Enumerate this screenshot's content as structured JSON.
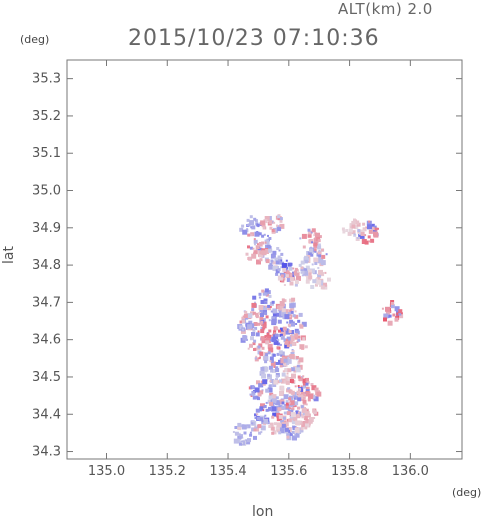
{
  "header": {
    "altitude_label": "ALT(km) 2.0",
    "timestamp": "2015/10/23 07:10:36"
  },
  "chart_data": {
    "type": "heatmap",
    "title": "2015/10/23 07:10:36",
    "xlabel": "lon",
    "ylabel": "lat",
    "x_unit": "(deg)",
    "y_unit": "(deg)",
    "xlim": [
      134.87,
      136.17
    ],
    "ylim": [
      34.28,
      35.35
    ],
    "xticks": [
      135.0,
      135.2,
      135.4,
      135.6,
      135.8,
      136.0
    ],
    "xtick_labels": [
      "135.0",
      "135.2",
      "135.4",
      "135.6",
      "135.8",
      "136.0"
    ],
    "yticks": [
      34.3,
      34.4,
      34.5,
      34.6,
      34.7,
      34.8,
      34.9,
      35.0,
      35.1,
      35.2,
      35.3
    ],
    "ytick_labels": [
      "34.3",
      "34.4",
      "34.5",
      "34.6",
      "34.7",
      "34.8",
      "34.9",
      "35.0",
      "35.1",
      "35.2",
      "35.3"
    ],
    "grid": false,
    "colors": {
      "positive": "#e8505a",
      "negative": "#4a4ae8"
    },
    "clusters": [
      {
        "lon": 135.47,
        "lat": 34.91,
        "v": -0.6
      },
      {
        "lon": 135.54,
        "lat": 34.92,
        "v": 0.5
      },
      {
        "lon": 135.51,
        "lat": 34.86,
        "v": -0.7
      },
      {
        "lon": 135.49,
        "lat": 34.84,
        "v": 0.6
      },
      {
        "lon": 135.55,
        "lat": 34.82,
        "v": -0.5
      },
      {
        "lon": 135.58,
        "lat": 34.79,
        "v": -0.8
      },
      {
        "lon": 135.6,
        "lat": 34.77,
        "v": 0.4
      },
      {
        "lon": 135.67,
        "lat": 34.87,
        "v": 0.6
      },
      {
        "lon": 135.69,
        "lat": 34.83,
        "v": -0.5
      },
      {
        "lon": 135.66,
        "lat": 34.8,
        "v": -0.4
      },
      {
        "lon": 135.69,
        "lat": 34.77,
        "v": 0.3
      },
      {
        "lon": 135.86,
        "lat": 34.89,
        "v": 0.7
      },
      {
        "lon": 135.81,
        "lat": 34.9,
        "v": 0.3
      },
      {
        "lon": 135.93,
        "lat": 34.68,
        "v": 0.8
      },
      {
        "lon": 135.51,
        "lat": 34.71,
        "v": -0.6
      },
      {
        "lon": 135.48,
        "lat": 34.66,
        "v": 0.5
      },
      {
        "lon": 135.55,
        "lat": 34.68,
        "v": -0.7
      },
      {
        "lon": 135.59,
        "lat": 34.69,
        "v": 0.4
      },
      {
        "lon": 135.61,
        "lat": 34.65,
        "v": -0.6
      },
      {
        "lon": 135.52,
        "lat": 34.63,
        "v": 0.7
      },
      {
        "lon": 135.46,
        "lat": 34.63,
        "v": -0.5
      },
      {
        "lon": 135.57,
        "lat": 34.61,
        "v": -0.8
      },
      {
        "lon": 135.62,
        "lat": 34.59,
        "v": 0.5
      },
      {
        "lon": 135.5,
        "lat": 34.58,
        "v": 0.6
      },
      {
        "lon": 135.55,
        "lat": 34.55,
        "v": -0.6
      },
      {
        "lon": 135.6,
        "lat": 34.54,
        "v": 0.4
      },
      {
        "lon": 135.53,
        "lat": 34.51,
        "v": -0.4
      },
      {
        "lon": 135.58,
        "lat": 34.49,
        "v": 0.3
      },
      {
        "lon": 135.63,
        "lat": 34.48,
        "v": 0.8
      },
      {
        "lon": 135.66,
        "lat": 34.46,
        "v": 0.6
      },
      {
        "lon": 135.5,
        "lat": 34.47,
        "v": -0.7
      },
      {
        "lon": 135.56,
        "lat": 34.44,
        "v": -0.5
      },
      {
        "lon": 135.62,
        "lat": 34.43,
        "v": -0.6
      },
      {
        "lon": 135.59,
        "lat": 34.41,
        "v": 0.7
      },
      {
        "lon": 135.65,
        "lat": 34.4,
        "v": 0.5
      },
      {
        "lon": 135.52,
        "lat": 34.41,
        "v": -0.8
      },
      {
        "lon": 135.55,
        "lat": 34.38,
        "v": 0.4
      },
      {
        "lon": 135.49,
        "lat": 34.37,
        "v": -0.5
      },
      {
        "lon": 135.6,
        "lat": 34.37,
        "v": -0.6
      },
      {
        "lon": 135.44,
        "lat": 34.35,
        "v": -0.4
      },
      {
        "lon": 135.63,
        "lat": 34.39,
        "v": 0.3
      }
    ]
  }
}
